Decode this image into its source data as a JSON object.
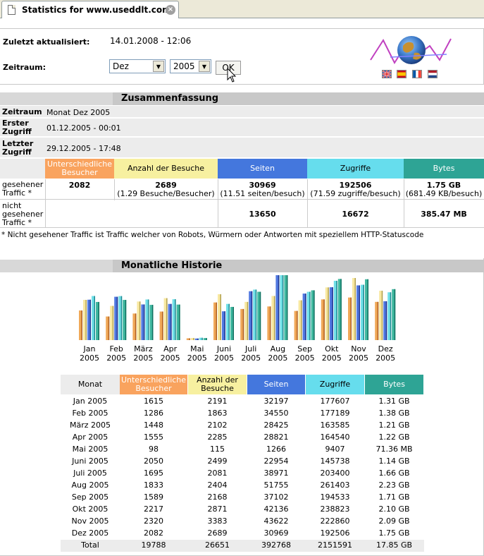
{
  "browser": {
    "tab_title": "Statistics for www.useddlt.com",
    "close_glyph": "×"
  },
  "header": {
    "updated_label": "Zuletzt aktualisiert:",
    "updated_value": "14.01.2008 - 12:06",
    "period_label": "Zeitraum:",
    "month_select": "Dez",
    "year_select": "2005",
    "ok_label": "OK",
    "flags": [
      "uk-flag",
      "spain-flag",
      "france-flag",
      "netherlands-flag"
    ]
  },
  "summary": {
    "title": "Zusammenfassung",
    "period_key": "Zeitraum",
    "period_value": "Monat Dez 2005",
    "first_key": "Erster Zugriff",
    "first_value": "01.12.2005 - 00:01",
    "last_key": "Letzter Zugriff",
    "last_value": "29.12.2005 - 17:48",
    "col_visitors": "Unterschiedliche Besucher",
    "col_visits": "Anzahl der Besuche",
    "col_pages": "Seiten",
    "col_hits": "Zugriffe",
    "col_bytes": "Bytes",
    "seen_label": "gesehener Traffic *",
    "seen_visitors": "2082",
    "seen_visits": "2689",
    "seen_visits_sub": "(1.29 Besuche/Besucher)",
    "seen_pages": "30969",
    "seen_pages_sub": "(11.51 seiten/besuch)",
    "seen_hits": "192506",
    "seen_hits_sub": "(71.59 zugriffe/besuch)",
    "seen_bytes": "1.75 GB",
    "seen_bytes_sub": "(681.49 KB/besuch)",
    "unseen_label": "nicht gesehener Traffic *",
    "unseen_pages": "13650",
    "unseen_hits": "16672",
    "unseen_bytes": "385.47 MB",
    "note": "* Nicht gesehener Traffic ist Traffic welcher von Robots, Würmern oder Antworten mit speziellem HTTP-Statuscode"
  },
  "monthly": {
    "title": "Monatliche Historie",
    "col_month": "Monat",
    "col_visitors": "Unterschiedliche Besucher",
    "col_visits": "Anzahl der Besuche",
    "col_pages": "Seiten",
    "col_hits": "Zugriffe",
    "col_bytes": "Bytes",
    "rows": [
      {
        "month": "Jan 2005",
        "visitors": "1615",
        "visits": "2191",
        "pages": "32197",
        "hits": "177607",
        "bytes": "1.31 GB"
      },
      {
        "month": "Feb 2005",
        "visitors": "1286",
        "visits": "1863",
        "pages": "34550",
        "hits": "177189",
        "bytes": "1.38 GB"
      },
      {
        "month": "März 2005",
        "visitors": "1448",
        "visits": "2102",
        "pages": "28425",
        "hits": "163585",
        "bytes": "1.21 GB"
      },
      {
        "month": "Apr 2005",
        "visitors": "1555",
        "visits": "2285",
        "pages": "28821",
        "hits": "164540",
        "bytes": "1.22 GB"
      },
      {
        "month": "Mai 2005",
        "visitors": "98",
        "visits": "115",
        "pages": "1266",
        "hits": "9407",
        "bytes": "71.36 MB"
      },
      {
        "month": "Juni 2005",
        "visitors": "2050",
        "visits": "2499",
        "pages": "22954",
        "hits": "145738",
        "bytes": "1.14 GB"
      },
      {
        "month": "Juli 2005",
        "visitors": "1695",
        "visits": "2081",
        "pages": "38971",
        "hits": "203400",
        "bytes": "1.66 GB"
      },
      {
        "month": "Aug 2005",
        "visitors": "1833",
        "visits": "2404",
        "pages": "51755",
        "hits": "261403",
        "bytes": "2.23 GB"
      },
      {
        "month": "Sep 2005",
        "visitors": "1589",
        "visits": "2168",
        "pages": "37102",
        "hits": "194533",
        "bytes": "1.71 GB"
      },
      {
        "month": "Okt 2005",
        "visitors": "2217",
        "visits": "2871",
        "pages": "42136",
        "hits": "238823",
        "bytes": "2.10 GB"
      },
      {
        "month": "Nov 2005",
        "visitors": "2320",
        "visits": "3383",
        "pages": "43622",
        "hits": "222860",
        "bytes": "2.09 GB"
      },
      {
        "month": "Dez 2005",
        "visitors": "2082",
        "visits": "2689",
        "pages": "30969",
        "hits": "192506",
        "bytes": "1.75 GB"
      }
    ],
    "total": {
      "month": "Total",
      "visitors": "19788",
      "visits": "26651",
      "pages": "392768",
      "hits": "2151591",
      "bytes": "17.85 GB"
    }
  },
  "chart_data": {
    "type": "bar",
    "categories": [
      "Jan 2005",
      "Feb 2005",
      "Mar 2005",
      "Apr 2005",
      "Mai 2005",
      "Juni 2005",
      "Juli 2005",
      "Aug 2005",
      "Sep 2005",
      "Okt 2005",
      "Nov 2005",
      "Dez 2005"
    ],
    "tick_labels_top": [
      "Jan",
      "Feb",
      "März",
      "Apr",
      "Mai",
      "Juni",
      "Juli",
      "Aug",
      "Sep",
      "Okt",
      "Nov",
      "Dez"
    ],
    "tick_labels_bottom": [
      "2005",
      "2005",
      "2005",
      "2005",
      "2005",
      "2005",
      "2005",
      "2005",
      "2005",
      "2005",
      "2005",
      "2005"
    ],
    "series": [
      {
        "color": "#f0a050",
        "values": [
          1615,
          1286,
          1448,
          1555,
          98,
          2050,
          1695,
          1833,
          1589,
          2217,
          2320,
          2082
        ]
      },
      {
        "color": "#f4e090",
        "values": [
          2191,
          1863,
          2102,
          2285,
          115,
          2499,
          2081,
          2404,
          2168,
          2871,
          3383,
          2689
        ]
      },
      {
        "color": "#4060c0",
        "values": [
          32197,
          34550,
          28425,
          28821,
          1266,
          22954,
          38971,
          51755,
          37102,
          42136,
          43622,
          30969
        ]
      },
      {
        "color": "#40c8d0",
        "values": [
          177607,
          177189,
          163585,
          164540,
          9407,
          145738,
          203400,
          261403,
          194533,
          238823,
          222860,
          192506
        ]
      },
      {
        "color": "#30a080",
        "values": [
          1.31,
          1.38,
          1.21,
          1.22,
          0.07,
          1.14,
          1.66,
          2.23,
          1.71,
          2.1,
          2.09,
          1.75
        ]
      }
    ]
  },
  "colors": {
    "visitors": "#f9a35e",
    "visits": "#f7f0a0",
    "pages": "#4477dd",
    "hits": "#66dded",
    "bytes": "#2ea495"
  }
}
